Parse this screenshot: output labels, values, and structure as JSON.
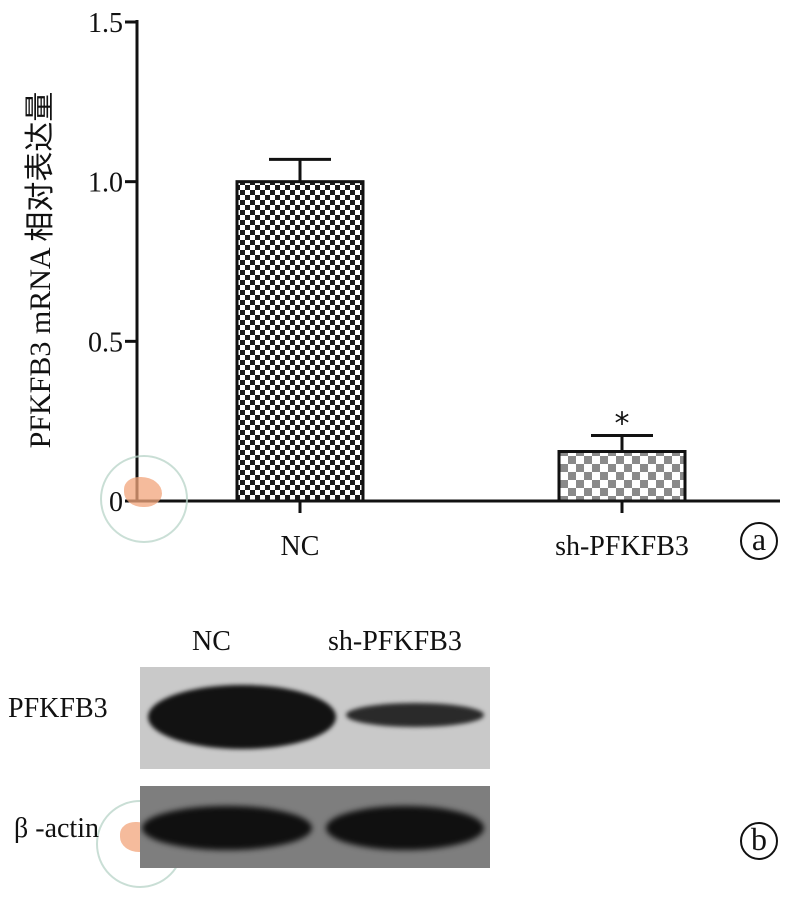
{
  "chart_data": {
    "type": "bar",
    "categories": [
      "NC",
      "sh-PFKFB3"
    ],
    "values": [
      1.0,
      0.155
    ],
    "error_bars": [
      0.07,
      0.05
    ],
    "annotations": [
      "",
      "*"
    ],
    "ylabel": "PFKFB3 mRNA 相对表达量",
    "xlabel": "",
    "ylim": [
      0,
      1.5
    ],
    "yticks": [
      "0",
      "0.5",
      "1.0",
      "1.5"
    ],
    "grid": false,
    "bar_patterns": [
      "dense-checker",
      "coarse-checker"
    ],
    "bar_colors": [
      "#1a1a1a",
      "#8a8a8a"
    ]
  },
  "panel_a": {
    "badge": "a"
  },
  "panel_b": {
    "badge": "b",
    "lane_labels": [
      "NC",
      "sh-PFKFB3"
    ],
    "row_labels": [
      "PFKFB3",
      "β -actin"
    ],
    "band_intensity": {
      "PFKFB3": [
        1.0,
        0.35
      ],
      "beta_actin": [
        1.0,
        1.0
      ]
    }
  }
}
